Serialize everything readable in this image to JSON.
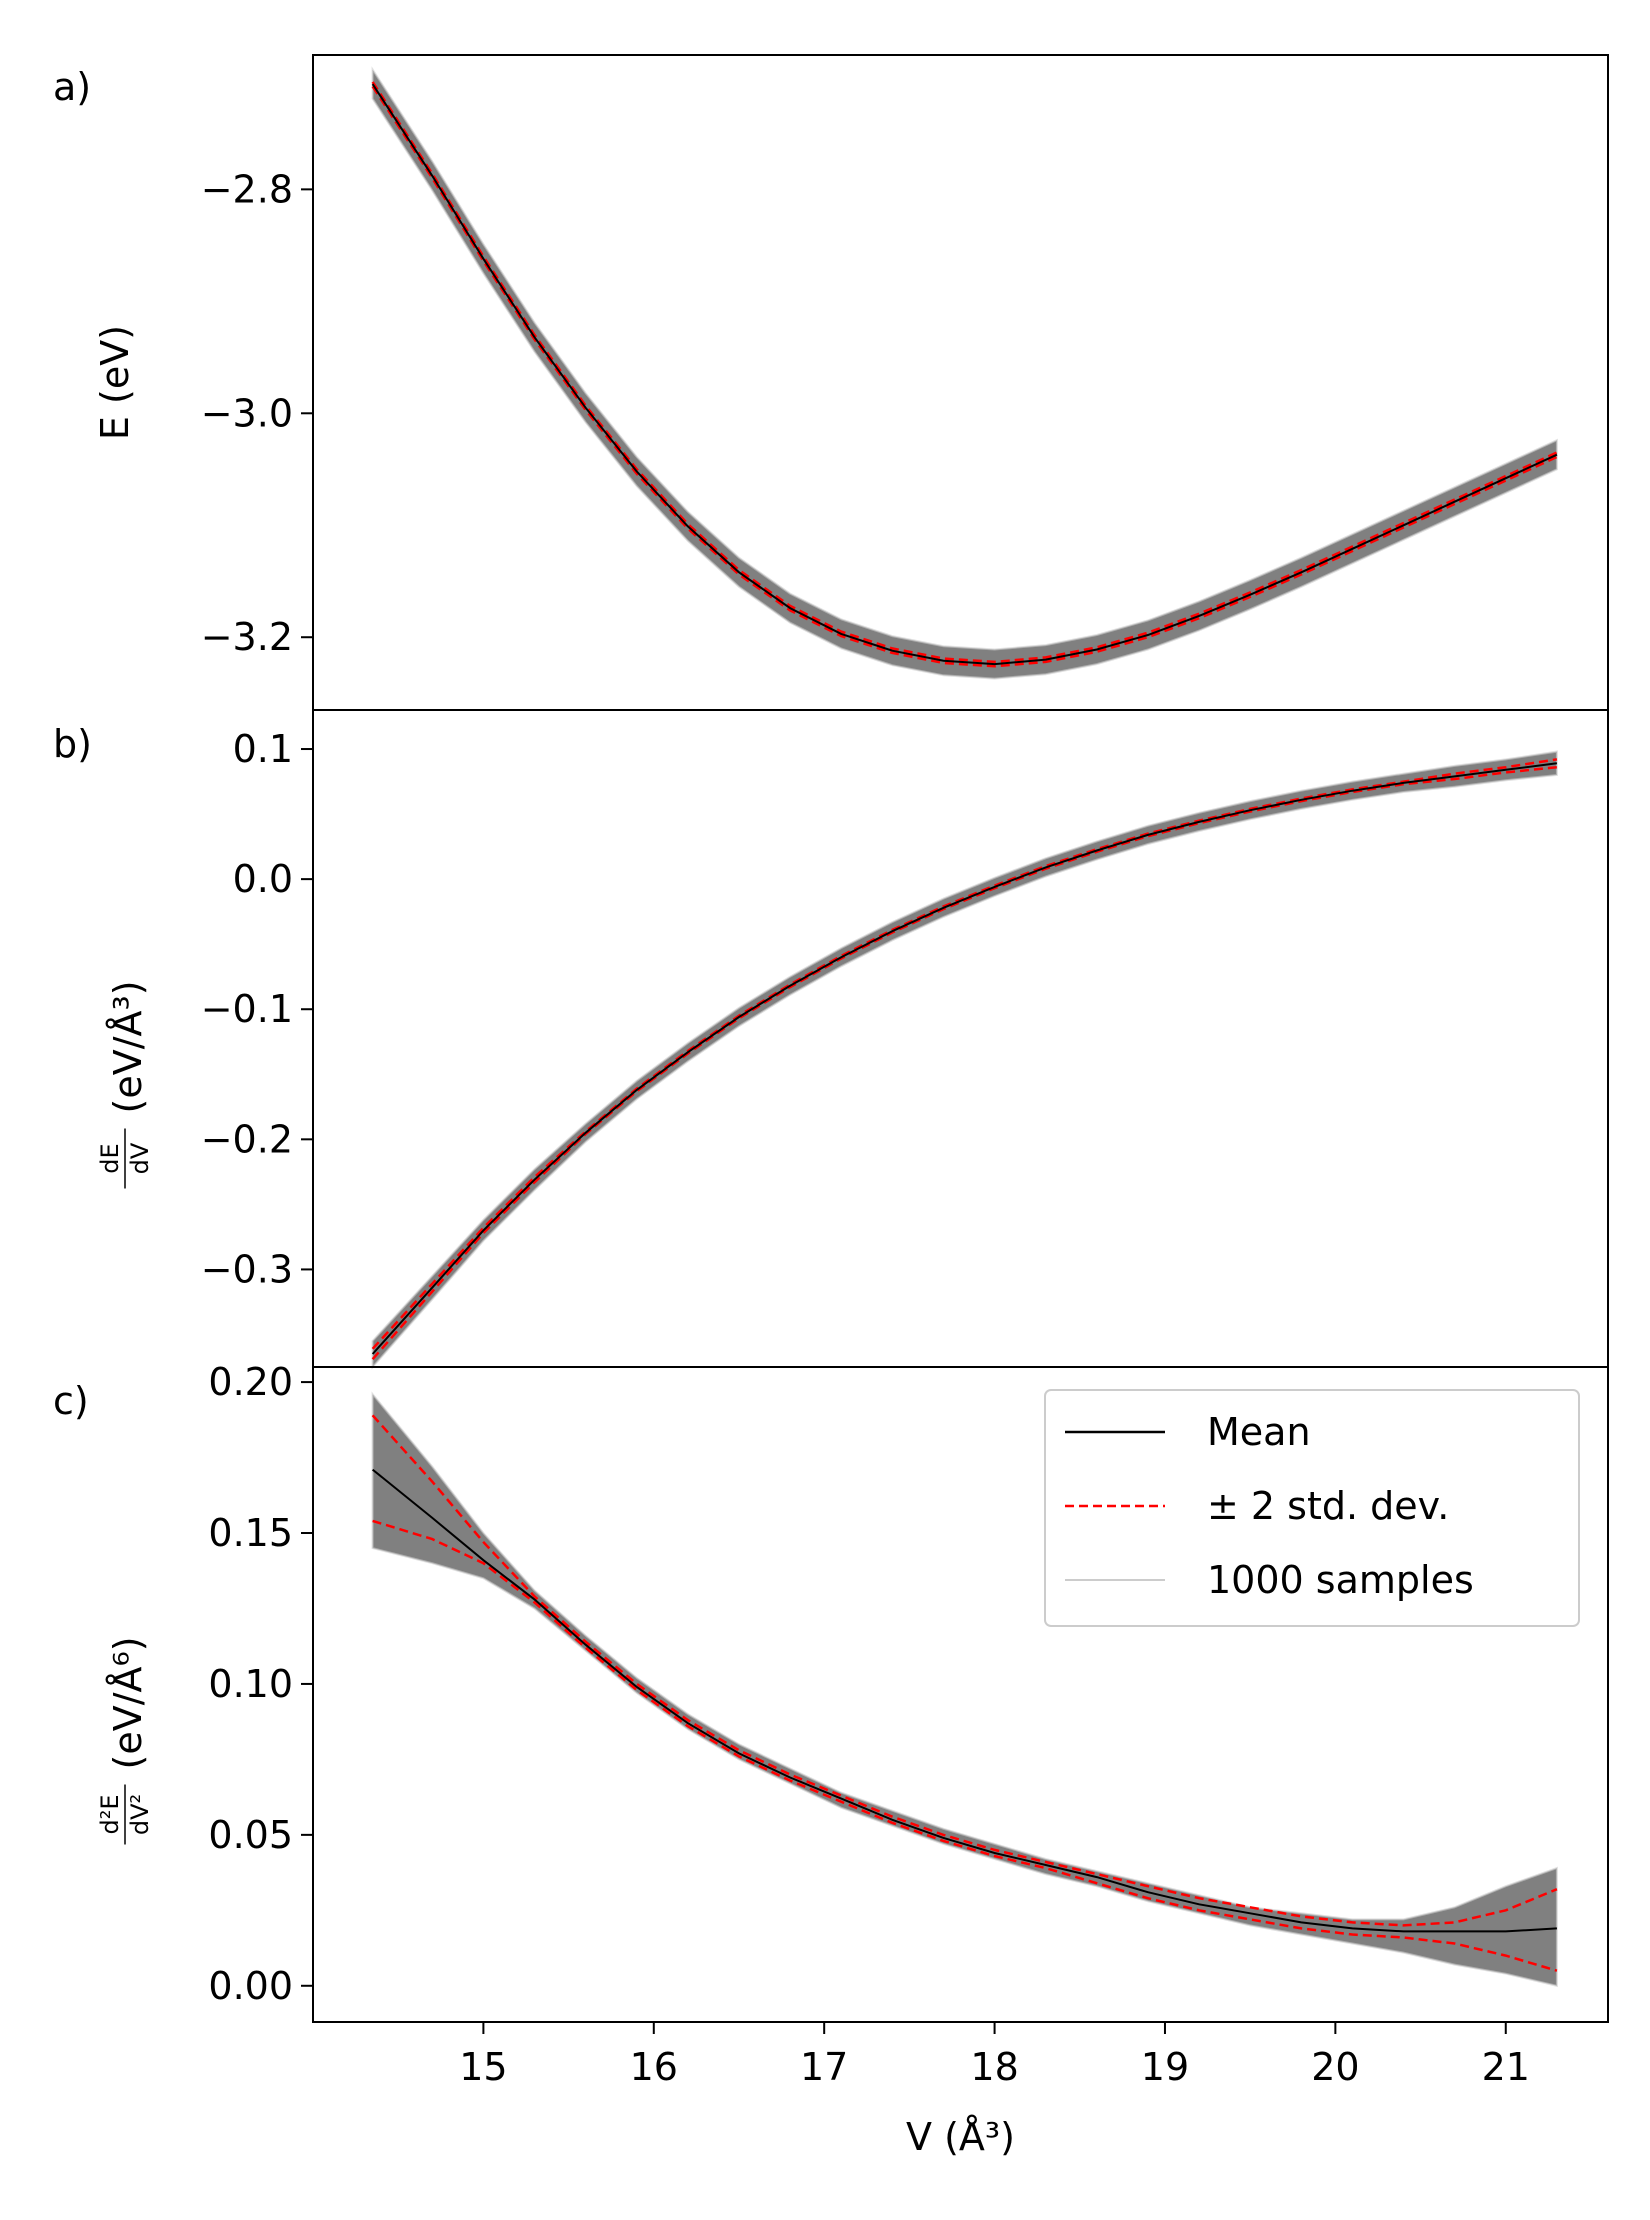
{
  "chart_data": [
    {
      "panel": "a)",
      "type": "line",
      "ylabel": "E (eV)",
      "xlim": [
        14.0,
        21.6
      ],
      "ylim": [
        -3.265,
        -2.68
      ],
      "yticks": [
        -2.8,
        -3.0,
        -3.2
      ],
      "ytick_labels": [
        "−2.8",
        "−3.0",
        "−3.2"
      ],
      "band_halfwidth": 0.011,
      "x": [
        14.35,
        14.7,
        15.0,
        15.3,
        15.6,
        15.9,
        16.2,
        16.5,
        16.8,
        17.1,
        17.4,
        17.7,
        18.0,
        18.3,
        18.6,
        18.9,
        19.2,
        19.5,
        19.8,
        20.1,
        20.4,
        20.7,
        21.0,
        21.3
      ],
      "series": [
        {
          "role": "mean",
          "values": [
            -2.706,
            -2.788,
            -2.862,
            -2.932,
            -2.995,
            -3.052,
            -3.101,
            -3.142,
            -3.174,
            -3.197,
            -3.212,
            -3.221,
            -3.224,
            -3.22,
            -3.211,
            -3.198,
            -3.181,
            -3.162,
            -3.142,
            -3.121,
            -3.1,
            -3.079,
            -3.058,
            -3.037
          ]
        },
        {
          "role": "std_upper",
          "values": [
            -2.704,
            -2.786,
            -2.86,
            -2.93,
            -2.993,
            -3.05,
            -3.099,
            -3.14,
            -3.172,
            -3.195,
            -3.21,
            -3.219,
            -3.222,
            -3.218,
            -3.209,
            -3.196,
            -3.179,
            -3.16,
            -3.14,
            -3.119,
            -3.098,
            -3.077,
            -3.056,
            -3.035
          ]
        },
        {
          "role": "std_lower",
          "values": [
            -2.708,
            -2.79,
            -2.864,
            -2.934,
            -2.997,
            -3.054,
            -3.103,
            -3.144,
            -3.176,
            -3.199,
            -3.214,
            -3.223,
            -3.226,
            -3.222,
            -3.213,
            -3.2,
            -3.183,
            -3.164,
            -3.144,
            -3.123,
            -3.102,
            -3.081,
            -3.06,
            -3.039
          ]
        }
      ]
    },
    {
      "panel": "b)",
      "type": "line",
      "ylabel_fraction": {
        "numerator": "dE",
        "denominator": "dV"
      },
      "ylabel_unit": "(eV/Å³)",
      "xlim": [
        14.0,
        21.6
      ],
      "ylim": [
        -0.375,
        0.13
      ],
      "yticks": [
        0.1,
        0.0,
        -0.1,
        -0.2,
        -0.3
      ],
      "ytick_labels": [
        "0.1",
        "0.0",
        "−0.1",
        "−0.2",
        "−0.3"
      ],
      "band_halfwidth": 0.006,
      "x": [
        14.35,
        14.7,
        15.0,
        15.3,
        15.6,
        15.9,
        16.2,
        16.5,
        16.8,
        17.1,
        17.4,
        17.7,
        18.0,
        18.3,
        18.6,
        18.9,
        19.2,
        19.5,
        19.8,
        20.1,
        20.4,
        20.7,
        21.0,
        21.3
      ],
      "series": [
        {
          "role": "mean",
          "values": [
            -0.365,
            -0.314,
            -0.27,
            -0.231,
            -0.195,
            -0.162,
            -0.133,
            -0.106,
            -0.082,
            -0.06,
            -0.04,
            -0.022,
            -0.006,
            0.009,
            0.022,
            0.034,
            0.044,
            0.053,
            0.061,
            0.068,
            0.074,
            0.079,
            0.084,
            0.089
          ]
        },
        {
          "role": "std_upper",
          "values": [
            -0.361,
            -0.311,
            -0.268,
            -0.229,
            -0.194,
            -0.161,
            -0.132,
            -0.105,
            -0.081,
            -0.059,
            -0.039,
            -0.021,
            -0.005,
            0.01,
            0.023,
            0.035,
            0.045,
            0.054,
            0.062,
            0.069,
            0.075,
            0.081,
            0.086,
            0.092
          ]
        },
        {
          "role": "std_lower",
          "values": [
            -0.369,
            -0.317,
            -0.272,
            -0.233,
            -0.196,
            -0.163,
            -0.134,
            -0.107,
            -0.083,
            -0.061,
            -0.041,
            -0.023,
            -0.007,
            0.008,
            0.021,
            0.033,
            0.043,
            0.052,
            0.06,
            0.067,
            0.073,
            0.077,
            0.082,
            0.086
          ]
        }
      ]
    },
    {
      "panel": "c)",
      "type": "line",
      "ylabel_fraction": {
        "numerator": "d²E",
        "denominator": "dV²"
      },
      "ylabel_unit": "(eV/Å⁶)",
      "xlim": [
        14.0,
        21.6
      ],
      "ylim": [
        -0.012,
        0.205
      ],
      "yticks": [
        0.2,
        0.15,
        0.1,
        0.05,
        0.0
      ],
      "ytick_labels": [
        "0.20",
        "0.15",
        "0.10",
        "0.05",
        "0.00"
      ],
      "xticks": [
        15,
        16,
        17,
        18,
        19,
        20,
        21
      ],
      "xtick_labels": [
        "15",
        "16",
        "17",
        "18",
        "19",
        "20",
        "21"
      ],
      "xlabel": "V (Å³)",
      "legend_position": "upper-right",
      "legend": [
        {
          "label": "Mean",
          "style": "solid",
          "color": "#000000"
        },
        {
          "label": "± 2 std. dev.",
          "style": "dashed",
          "color": "#ff0000"
        },
        {
          "label": "1000 samples",
          "style": "solid",
          "color": "#cccccc"
        }
      ],
      "band_x": [
        14.35,
        14.7,
        15.0,
        15.3,
        15.6,
        15.9,
        16.2,
        16.5,
        16.8,
        17.1,
        17.4,
        17.7,
        18.0,
        18.3,
        18.6,
        18.9,
        19.2,
        19.5,
        19.8,
        20.1,
        20.4,
        20.7,
        21.0,
        21.3
      ],
      "band_upper": [
        0.196,
        0.172,
        0.15,
        0.131,
        0.116,
        0.102,
        0.09,
        0.08,
        0.072,
        0.064,
        0.058,
        0.052,
        0.047,
        0.042,
        0.038,
        0.034,
        0.03,
        0.026,
        0.024,
        0.022,
        0.022,
        0.026,
        0.033,
        0.039
      ],
      "band_lower": [
        0.145,
        0.14,
        0.135,
        0.125,
        0.111,
        0.097,
        0.085,
        0.075,
        0.067,
        0.059,
        0.053,
        0.047,
        0.042,
        0.037,
        0.033,
        0.028,
        0.024,
        0.02,
        0.017,
        0.014,
        0.011,
        0.007,
        0.004,
        0.0
      ],
      "x": [
        14.35,
        14.7,
        15.0,
        15.3,
        15.6,
        15.9,
        16.2,
        16.5,
        16.8,
        17.1,
        17.4,
        17.7,
        18.0,
        18.3,
        18.6,
        18.9,
        19.2,
        19.5,
        19.8,
        20.1,
        20.4,
        20.7,
        21.0,
        21.3
      ],
      "series": [
        {
          "role": "mean",
          "values": [
            0.171,
            0.155,
            0.141,
            0.128,
            0.113,
            0.099,
            0.087,
            0.077,
            0.069,
            0.062,
            0.055,
            0.049,
            0.044,
            0.04,
            0.036,
            0.031,
            0.027,
            0.024,
            0.021,
            0.019,
            0.018,
            0.018,
            0.018,
            0.019
          ]
        },
        {
          "role": "std_upper",
          "values": [
            0.189,
            0.167,
            0.147,
            0.129,
            0.114,
            0.1,
            0.088,
            0.078,
            0.07,
            0.063,
            0.056,
            0.05,
            0.045,
            0.041,
            0.037,
            0.033,
            0.029,
            0.026,
            0.023,
            0.021,
            0.02,
            0.021,
            0.025,
            0.032
          ]
        },
        {
          "role": "std_lower",
          "values": [
            0.154,
            0.148,
            0.14,
            0.127,
            0.112,
            0.098,
            0.086,
            0.076,
            0.068,
            0.061,
            0.054,
            0.048,
            0.043,
            0.039,
            0.034,
            0.029,
            0.025,
            0.022,
            0.019,
            0.017,
            0.016,
            0.014,
            0.01,
            0.005
          ]
        }
      ]
    }
  ],
  "colors": {
    "band": "#808080",
    "mean": "#000000",
    "std": "#ff0000",
    "sample": "#cccccc"
  }
}
